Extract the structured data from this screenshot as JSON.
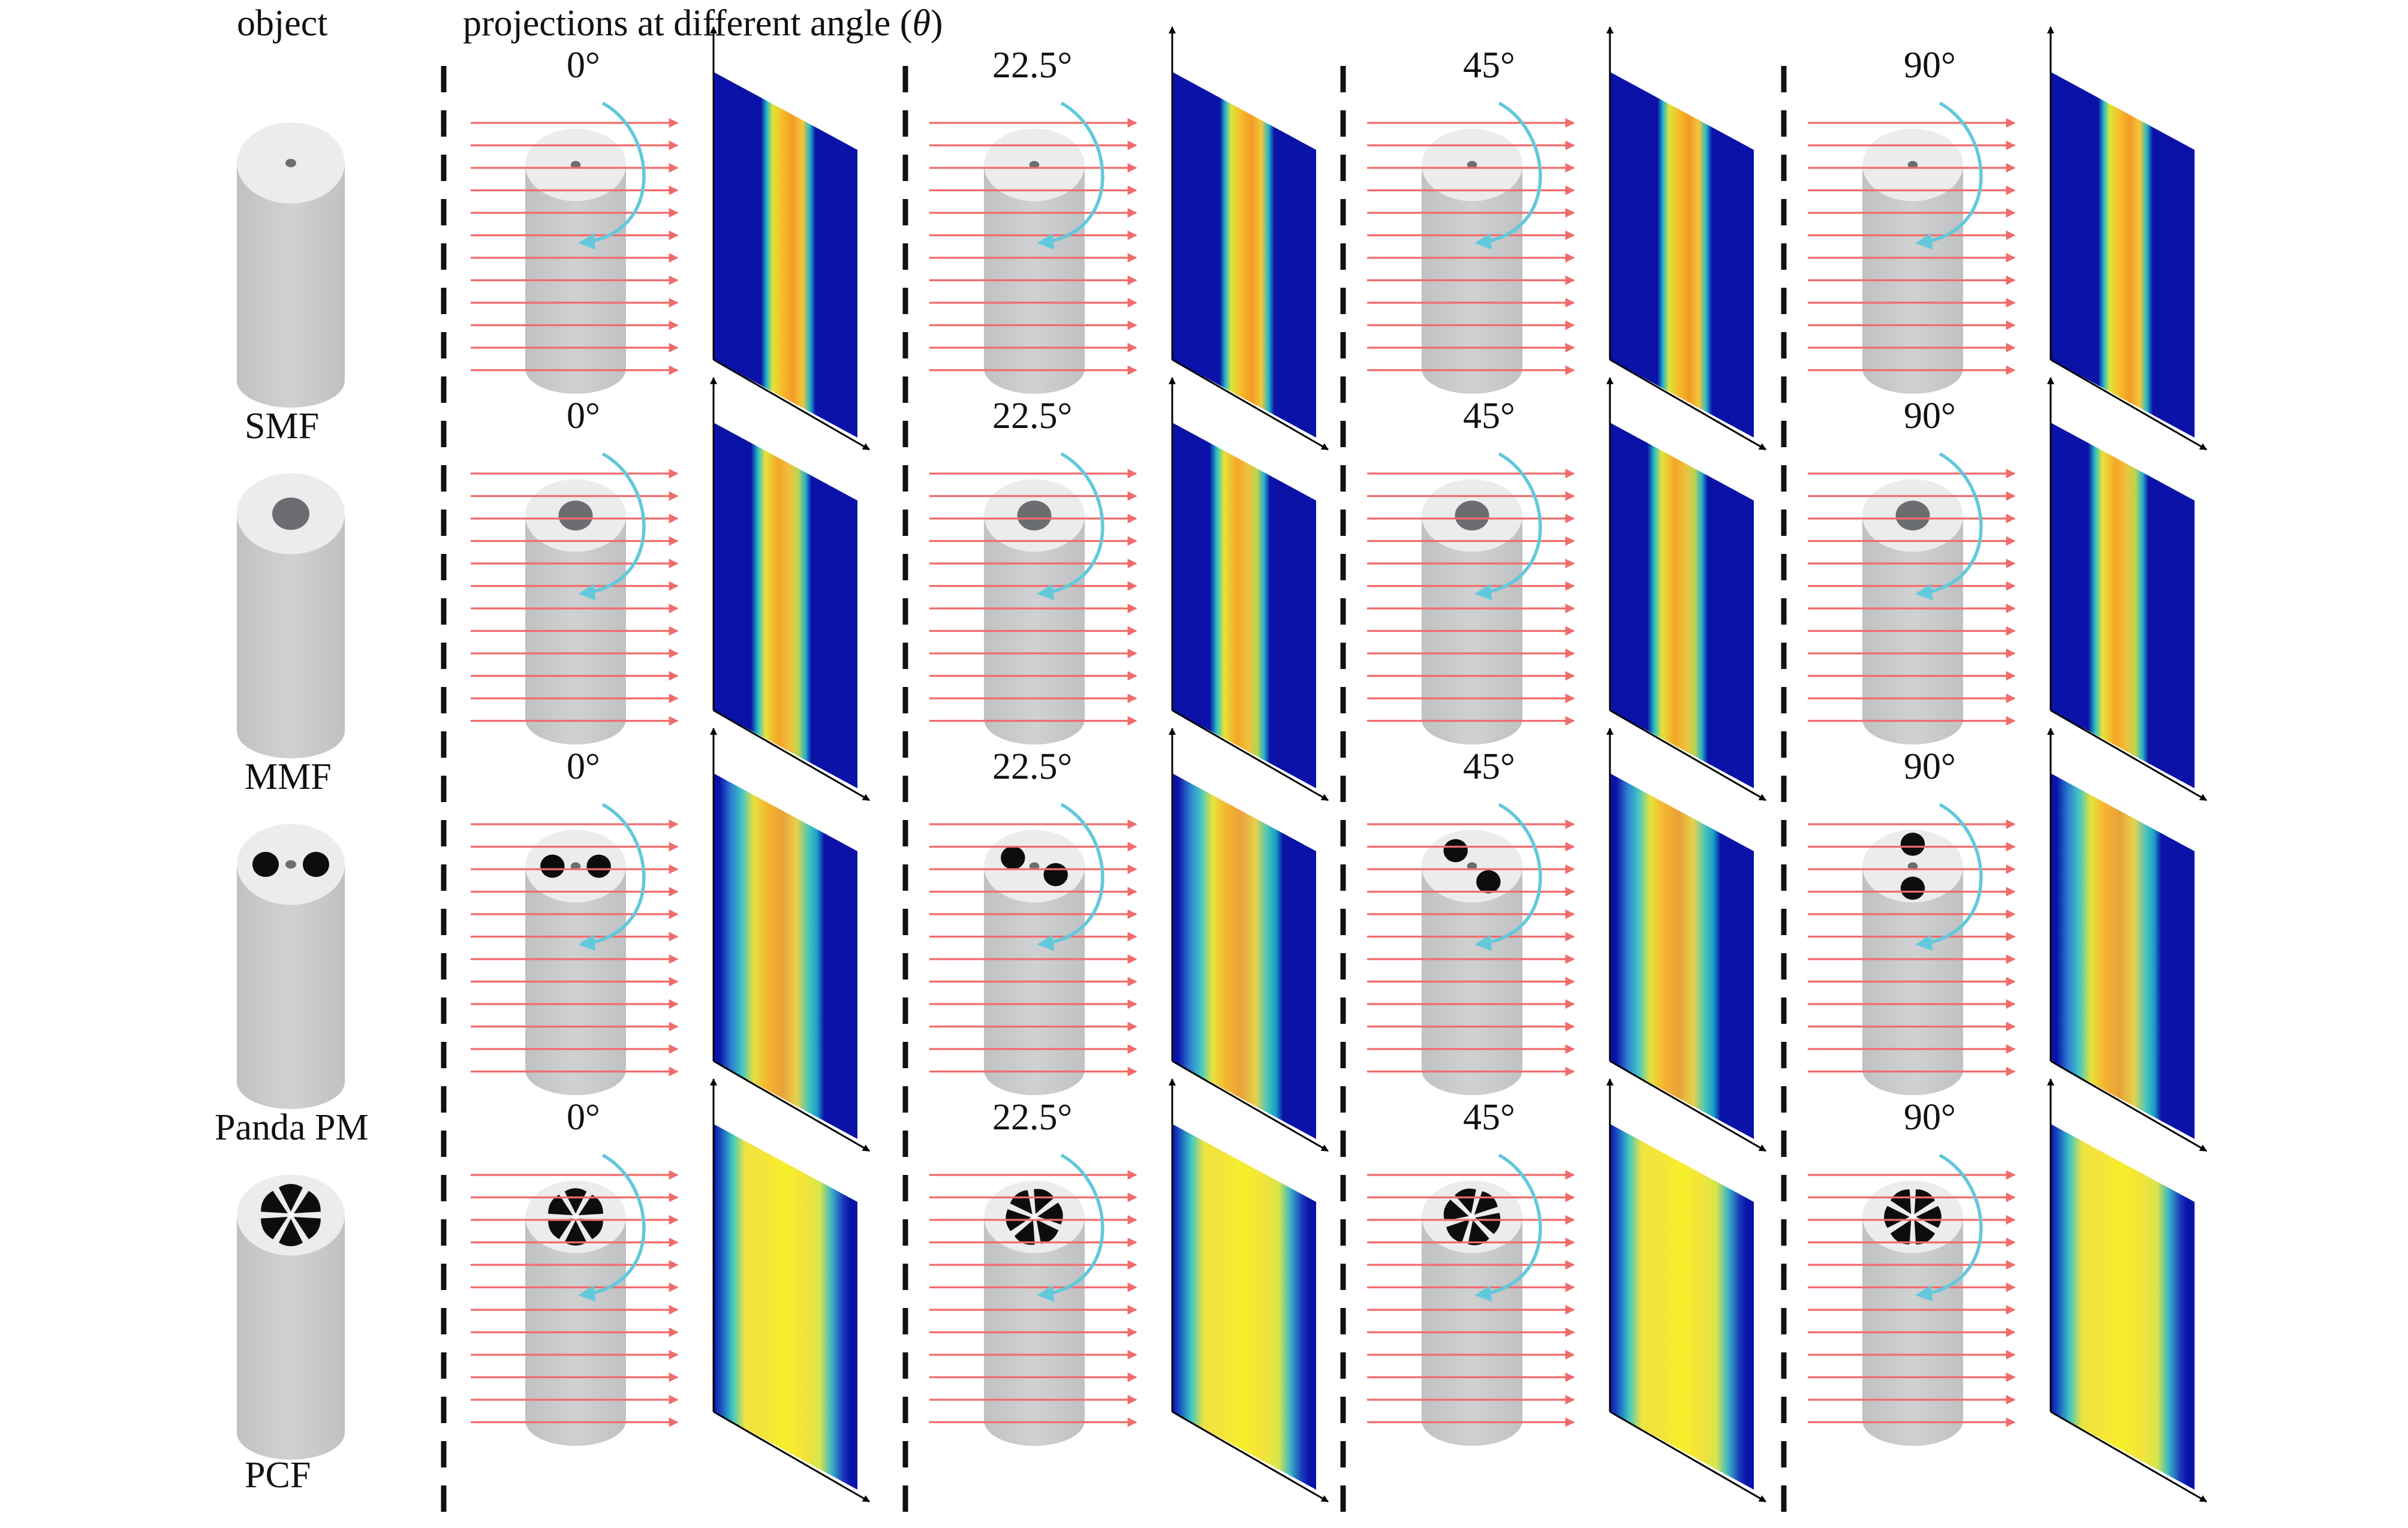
{
  "header": {
    "object_label": "object",
    "projections_label": "projections at different angle (",
    "theta_symbol": "θ",
    "close_paren": ")"
  },
  "angles": [
    "0°",
    "22.5°",
    "45°",
    "90°"
  ],
  "fibers": [
    {
      "name": "SMF",
      "core": "small",
      "profile": "smf"
    },
    {
      "name": "MMF",
      "core": "large",
      "profile": "mmf"
    },
    {
      "name": "Panda PM",
      "core": "panda",
      "profile": "panda"
    },
    {
      "name": "PCF",
      "core": "pcf",
      "profile": "pcf"
    }
  ],
  "colors": {
    "cylinder_body": "#c7c9ca",
    "cylinder_top": "#ececec",
    "core_gray": "#6b6d71",
    "stress_rod": "#0d0d0d",
    "ray": "#f26b6b",
    "rotation_arrow": "#62c8dc",
    "detector_blue": "#0a12a8",
    "divider": "#111111"
  }
}
